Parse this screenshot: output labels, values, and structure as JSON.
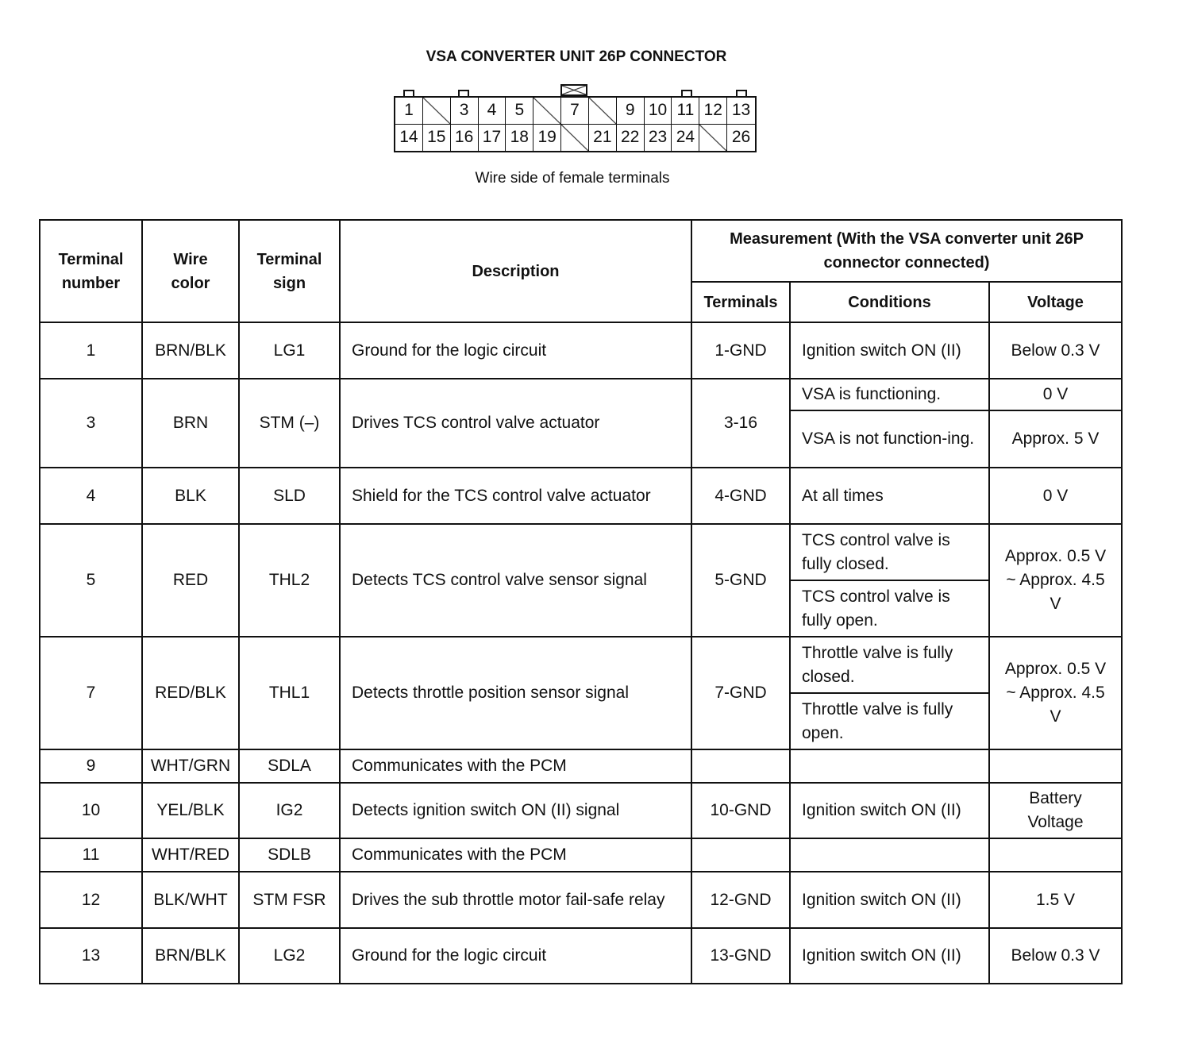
{
  "title": "VSA CONVERTER UNIT 26P CONNECTOR",
  "connector": {
    "rows": [
      [
        "1",
        null,
        "3",
        "4",
        "5",
        null,
        "7",
        null,
        "9",
        "10",
        "11",
        "12",
        "13"
      ],
      [
        "14",
        "15",
        "16",
        "17",
        "18",
        "19",
        null,
        "21",
        "22",
        "23",
        "24",
        null,
        "26"
      ]
    ]
  },
  "caption": "Wire side of female terminals",
  "headers": {
    "terminal_number": "Terminal number",
    "wire_color": "Wire color",
    "terminal_sign": "Terminal sign",
    "description": "Description",
    "measurement": "Measurement (With the VSA converter unit 26P connector connected)",
    "terminals": "Terminals",
    "conditions": "Conditions",
    "voltage": "Voltage"
  },
  "rows": [
    {
      "num": "1",
      "wire": "BRN/BLK",
      "sign": "LG1",
      "desc": "Ground for the logic circuit",
      "term": "1-GND",
      "cond": [
        "Ignition switch ON (II)"
      ],
      "volt": "Below 0.3 V"
    },
    {
      "num": "3",
      "wire": "BRN",
      "sign": "STM (–)",
      "desc": "Drives TCS control valve actuator",
      "term": "3-16",
      "cond": [
        "VSA is functioning.",
        "VSA is not function-ing."
      ],
      "volt": [
        "0 V",
        "Approx. 5 V"
      ]
    },
    {
      "num": "4",
      "wire": "BLK",
      "sign": "SLD",
      "desc": "Shield for the TCS control valve actuator",
      "term": "4-GND",
      "cond": [
        "At all times"
      ],
      "volt": "0 V"
    },
    {
      "num": "5",
      "wire": "RED",
      "sign": "THL2",
      "desc": "Detects TCS control valve sensor signal",
      "term": "5-GND",
      "cond": [
        "TCS control valve is fully closed.",
        "TCS control valve is fully open."
      ],
      "volt": "Approx. 0.5 V ~ Approx. 4.5 V"
    },
    {
      "num": "7",
      "wire": "RED/BLK",
      "sign": "THL1",
      "desc": "Detects throttle position sensor signal",
      "term": "7-GND",
      "cond": [
        "Throttle valve is fully closed.",
        "Throttle valve is fully open."
      ],
      "volt": "Approx. 0.5 V ~ Approx. 4.5 V"
    },
    {
      "num": "9",
      "wire": "WHT/GRN",
      "sign": "SDLA",
      "desc": "Communicates with the PCM",
      "term": "",
      "cond": [
        ""
      ],
      "volt": ""
    },
    {
      "num": "10",
      "wire": "YEL/BLK",
      "sign": "IG2",
      "desc": "Detects ignition switch ON (II) signal",
      "term": "10-GND",
      "cond": [
        "Ignition switch ON (II)"
      ],
      "volt": "Battery Voltage"
    },
    {
      "num": "11",
      "wire": "WHT/RED",
      "sign": "SDLB",
      "desc": "Communicates with the PCM",
      "term": "",
      "cond": [
        ""
      ],
      "volt": ""
    },
    {
      "num": "12",
      "wire": "BLK/WHT",
      "sign": "STM FSR",
      "desc": "Drives the sub throttle motor fail-safe relay",
      "term": "12-GND",
      "cond": [
        "Ignition switch ON (II)"
      ],
      "volt": "1.5 V"
    },
    {
      "num": "13",
      "wire": "BRN/BLK",
      "sign": "LG2",
      "desc": "Ground for the logic circuit",
      "term": "13-GND",
      "cond": [
        "Ignition switch ON (II)"
      ],
      "volt": "Below 0.3 V"
    }
  ]
}
